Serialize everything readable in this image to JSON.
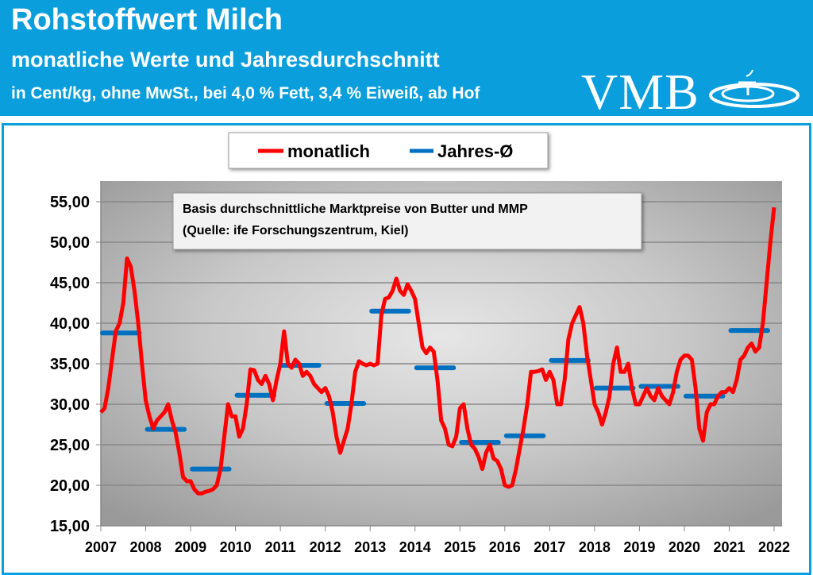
{
  "header": {
    "title": "Rohstoffwert Milch",
    "subtitle": "monatliche Werte und Jahresdurchschnitt",
    "note": "in Cent/kg, ohne MwSt., bei 4,0 % Fett, 3,4 % Eiweiß, ab Hof",
    "logo_text": "VMB",
    "color": "#0a9edc"
  },
  "chart_data": {
    "type": "line",
    "title": "",
    "xlabel": "",
    "ylabel": "",
    "ylim": [
      15,
      55
    ],
    "yticks": [
      "15,00",
      "20,00",
      "25,00",
      "30,00",
      "35,00",
      "40,00",
      "45,00",
      "50,00",
      "55,00"
    ],
    "xticks": [
      "2007",
      "2008",
      "2009",
      "2010",
      "2011",
      "2012",
      "2013",
      "2014",
      "2015",
      "2016",
      "2017",
      "2018",
      "2019",
      "2020",
      "2021",
      "2022"
    ],
    "grid": true,
    "legend_position": "top-center",
    "annotation": [
      "Basis durchschnittliche Marktpreise von Butter und MMP",
      "(Quelle: ife Forschungszentrum, Kiel)"
    ],
    "series": [
      {
        "name": "monatlich",
        "color": "#ff0000",
        "start": "2007-01",
        "frequency": "monthly",
        "values": [
          29,
          29.5,
          32,
          35.5,
          39,
          40,
          42.5,
          48,
          47,
          44,
          40,
          35,
          30.5,
          28.5,
          27,
          28,
          28.5,
          29,
          30,
          28,
          26.5,
          24,
          21,
          20.5,
          20.5,
          19.5,
          19,
          19,
          19.2,
          19.3,
          19.5,
          20,
          22,
          26,
          30,
          28.5,
          28.5,
          26,
          27,
          30,
          34.3,
          34.2,
          33,
          32.5,
          33.5,
          32.5,
          30.5,
          33,
          35,
          39,
          35,
          34.5,
          35.5,
          35,
          33.5,
          34,
          33.5,
          32.5,
          32,
          31.5,
          32,
          31,
          29,
          26,
          24,
          25.5,
          27,
          30,
          34,
          35.3,
          35,
          34.8,
          35,
          34.8,
          35,
          41,
          43,
          43.2,
          44,
          45.5,
          44,
          43.5,
          44.8,
          44,
          43,
          40,
          37,
          36.3,
          37,
          36.5,
          33,
          28,
          27,
          25,
          24.8,
          26,
          29.5,
          30,
          27,
          25,
          24.5,
          23.5,
          22,
          24,
          25,
          23.3,
          23,
          22,
          20,
          19.8,
          20,
          22,
          24.5,
          27,
          30,
          34,
          34,
          34.1,
          34.3,
          33,
          34,
          33,
          30,
          30,
          33,
          38,
          40,
          41,
          42,
          40,
          36,
          33,
          30,
          29,
          27.5,
          29,
          31,
          35,
          37,
          34,
          34,
          35,
          32,
          30,
          30,
          31,
          32,
          31,
          30.5,
          32,
          31,
          30.5,
          30,
          31.5,
          34,
          35.5,
          36,
          36,
          35.5,
          32,
          27,
          25.5,
          29,
          30,
          30,
          31,
          31.5,
          31.5,
          32,
          31.5,
          33,
          35.5,
          36,
          37,
          37.5,
          36.5,
          37,
          40,
          45,
          50,
          54.3
        ]
      },
      {
        "name": "Jahres-Ø",
        "color": "#0070c0",
        "frequency": "yearly",
        "years": [
          2007,
          2008,
          2009,
          2010,
          2011,
          2012,
          2013,
          2014,
          2015,
          2016,
          2017,
          2018,
          2019,
          2020,
          2021
        ],
        "values": [
          38.8,
          26.9,
          22.0,
          31.1,
          34.8,
          30.1,
          41.5,
          34.5,
          25.3,
          26.1,
          35.4,
          32.0,
          32.2,
          31.0,
          39.1
        ]
      }
    ]
  }
}
